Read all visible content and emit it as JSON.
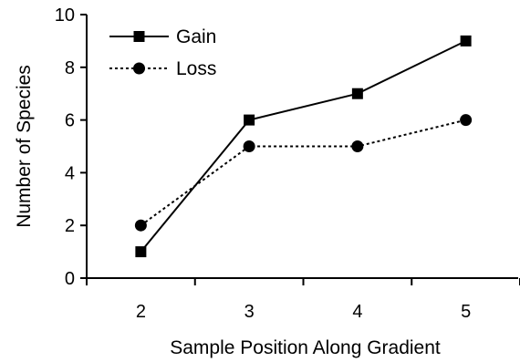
{
  "chart_data": {
    "type": "line",
    "xlabel": "Sample Position Along Gradient",
    "ylabel": "Number of Species",
    "x": [
      2,
      3,
      4,
      5
    ],
    "xticks": [
      "2",
      "3",
      "4",
      "5"
    ],
    "xlim": [
      1.5,
      5.5
    ],
    "ylim": [
      0,
      10
    ],
    "yticks": [
      "0",
      "2",
      "4",
      "6",
      "8",
      "10"
    ],
    "grid": false,
    "legend_position": "top-left",
    "series": [
      {
        "name": "Gain",
        "values": [
          1,
          6,
          7,
          9
        ],
        "marker": "square",
        "line": "solid",
        "color": "#000000"
      },
      {
        "name": "Loss",
        "values": [
          2,
          5,
          5,
          6
        ],
        "marker": "circle",
        "line": "dotted",
        "color": "#000000"
      }
    ]
  }
}
